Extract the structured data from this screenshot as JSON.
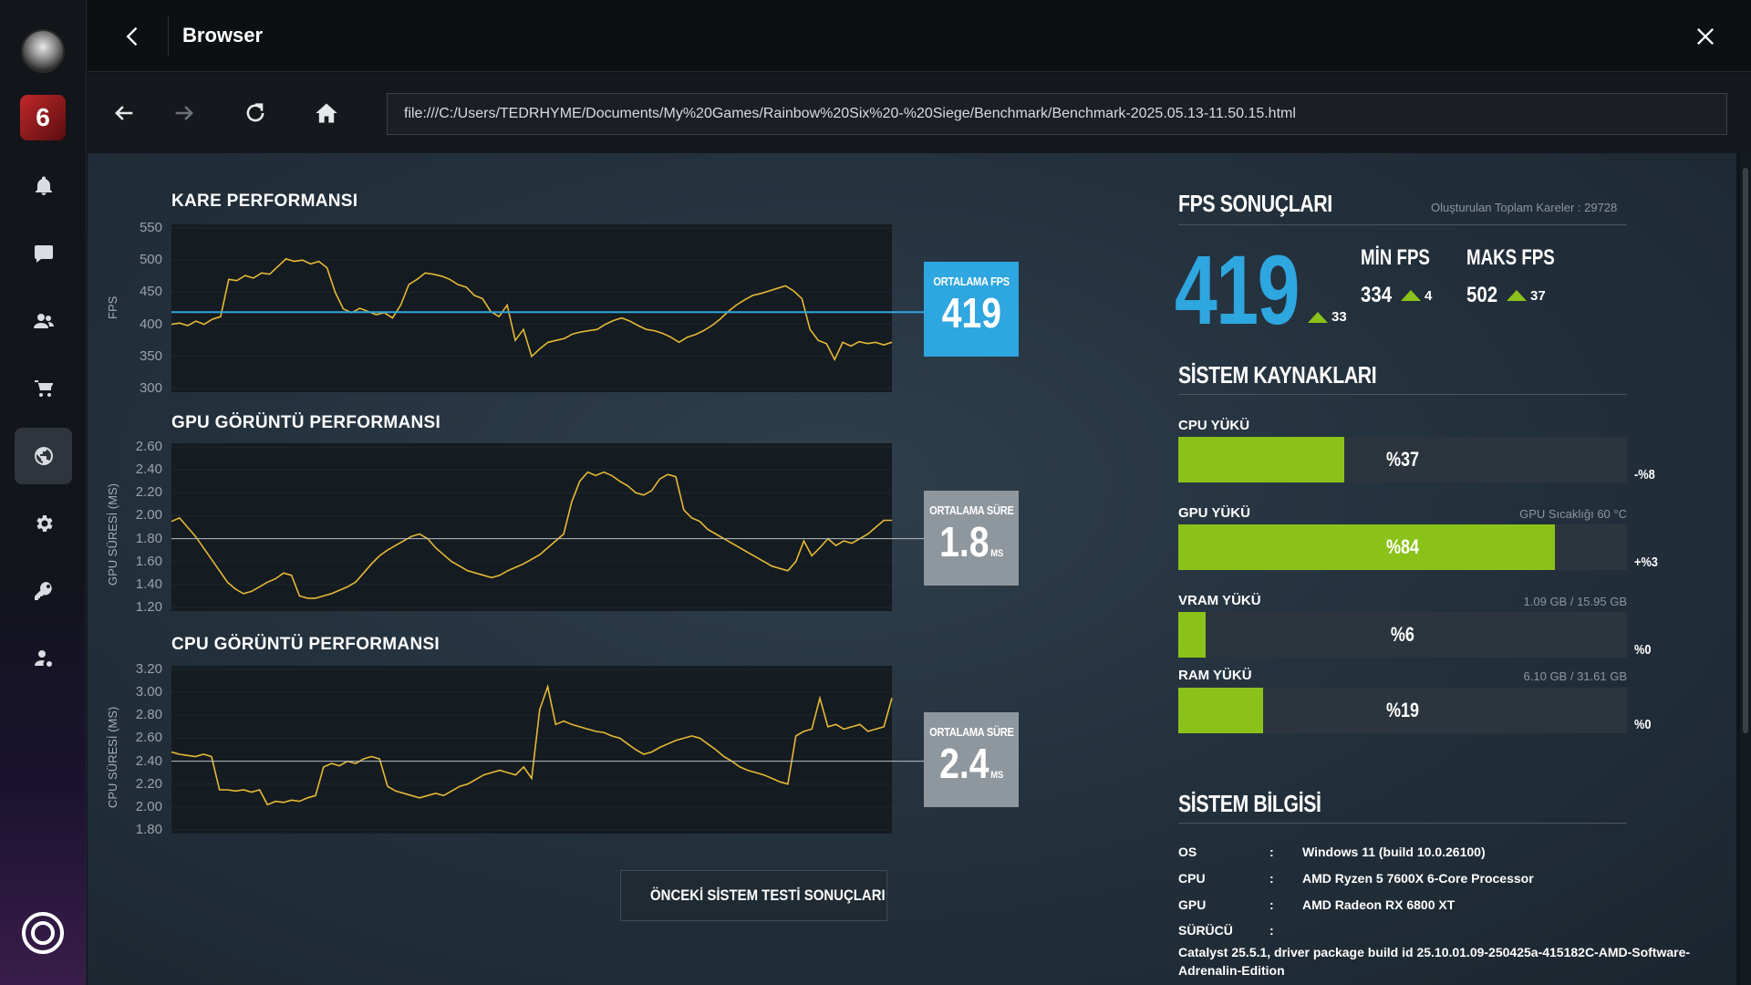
{
  "window": {
    "title": "Browser"
  },
  "nav": {
    "url": "file:///C:/Users/TEDRHYME/Documents/My%20Games/Rainbow%20Six%20-%20Siege/Benchmark/Benchmark-2025.05.13-11.50.15.html"
  },
  "sidebar": {
    "items": [
      {
        "icon": "bell-icon"
      },
      {
        "icon": "chat-icon"
      },
      {
        "icon": "friends-icon"
      },
      {
        "icon": "cart-icon"
      },
      {
        "icon": "globe-icon"
      },
      {
        "icon": "gear-icon"
      },
      {
        "icon": "key-icon"
      },
      {
        "icon": "user-settings-icon"
      }
    ]
  },
  "charts": {
    "frame": {
      "title": "KARE PERFORMANSI",
      "ylabel": "FPS",
      "ticks": [
        "550",
        "500",
        "450",
        "400",
        "350",
        "300"
      ],
      "avg_label": "ORTALAMA FPS",
      "avg_value": "419",
      "avg_unit": ""
    },
    "gpu": {
      "title": "GPU GÖRÜNTÜ PERFORMANSI",
      "ylabel": "GPU SÜRESİ (MS)",
      "ticks": [
        "2.60",
        "2.40",
        "2.20",
        "2.00",
        "1.80",
        "1.60",
        "1.40",
        "1.20"
      ],
      "avg_label": "ORTALAMA SÜRE",
      "avg_value": "1.8",
      "avg_unit": "MS"
    },
    "cpu": {
      "title": "CPU GÖRÜNTÜ PERFORMANSI",
      "ylabel": "CPU SÜRESİ (MS)",
      "ticks": [
        "3.20",
        "3.00",
        "2.80",
        "2.60",
        "2.40",
        "2.20",
        "2.00",
        "1.80"
      ],
      "avg_label": "ORTALAMA SÜRE",
      "avg_value": "2.4",
      "avg_unit": "MS"
    }
  },
  "chart_data": [
    {
      "type": "line",
      "title": "KARE PERFORMANSI",
      "xlabel": "",
      "ylabel": "FPS",
      "ylim": [
        300,
        550
      ],
      "average": 419,
      "series": [
        {
          "values": [
            400,
            402,
            398,
            405,
            400,
            408,
            412,
            470,
            468,
            476,
            472,
            480,
            478,
            490,
            502,
            498,
            500,
            494,
            498,
            488,
            450,
            424,
            418,
            425,
            420,
            415,
            418,
            410,
            430,
            462,
            470,
            480,
            478,
            475,
            470,
            462,
            458,
            445,
            440,
            420,
            412,
            430,
            375,
            392,
            350,
            362,
            372,
            375,
            378,
            385,
            388,
            390,
            392,
            400,
            406,
            410,
            405,
            398,
            392,
            390,
            386,
            380,
            372,
            380,
            384,
            390,
            398,
            408,
            420,
            430,
            438,
            445,
            448,
            452,
            456,
            460,
            452,
            440,
            392,
            375,
            370,
            345,
            372,
            366,
            373,
            370,
            372,
            368,
            372
          ]
        }
      ]
    },
    {
      "type": "line",
      "title": "GPU GÖRÜNTÜ PERFORMANSI",
      "xlabel": "",
      "ylabel": "GPU SÜRESİ (MS)",
      "ylim": [
        1.2,
        2.6
      ],
      "average": 1.8,
      "series": [
        {
          "values": [
            1.95,
            1.98,
            1.9,
            1.82,
            1.72,
            1.62,
            1.52,
            1.42,
            1.36,
            1.32,
            1.34,
            1.38,
            1.42,
            1.45,
            1.5,
            1.48,
            1.3,
            1.28,
            1.28,
            1.3,
            1.32,
            1.35,
            1.38,
            1.42,
            1.5,
            1.58,
            1.65,
            1.7,
            1.74,
            1.78,
            1.82,
            1.84,
            1.8,
            1.72,
            1.66,
            1.6,
            1.56,
            1.52,
            1.5,
            1.48,
            1.46,
            1.48,
            1.52,
            1.55,
            1.58,
            1.62,
            1.66,
            1.72,
            1.78,
            1.84,
            2.12,
            2.3,
            2.38,
            2.35,
            2.38,
            2.35,
            2.3,
            2.26,
            2.2,
            2.18,
            2.22,
            2.32,
            2.36,
            2.34,
            2.05,
            1.98,
            1.95,
            1.88,
            1.84,
            1.8,
            1.76,
            1.72,
            1.68,
            1.64,
            1.6,
            1.56,
            1.54,
            1.52,
            1.6,
            1.78,
            1.65,
            1.72,
            1.8,
            1.74,
            1.78,
            1.76,
            1.8,
            1.84,
            1.9,
            1.96,
            1.96
          ]
        }
      ]
    },
    {
      "type": "line",
      "title": "CPU GÖRÜNTÜ PERFORMANSI",
      "xlabel": "",
      "ylabel": "CPU SÜRESİ (MS)",
      "ylim": [
        1.8,
        3.2
      ],
      "average": 2.4,
      "series": [
        {
          "values": [
            2.48,
            2.46,
            2.45,
            2.44,
            2.46,
            2.44,
            2.15,
            2.15,
            2.14,
            2.15,
            2.13,
            2.15,
            2.02,
            2.05,
            2.04,
            2.06,
            2.05,
            2.08,
            2.1,
            2.35,
            2.38,
            2.36,
            2.4,
            2.38,
            2.42,
            2.44,
            2.42,
            2.18,
            2.14,
            2.12,
            2.1,
            2.08,
            2.1,
            2.12,
            2.1,
            2.14,
            2.18,
            2.2,
            2.24,
            2.28,
            2.3,
            2.32,
            2.3,
            2.28,
            2.35,
            2.25,
            2.85,
            3.05,
            2.72,
            2.75,
            2.72,
            2.7,
            2.68,
            2.66,
            2.65,
            2.62,
            2.6,
            2.55,
            2.5,
            2.46,
            2.48,
            2.52,
            2.55,
            2.58,
            2.6,
            2.62,
            2.6,
            2.55,
            2.5,
            2.44,
            2.4,
            2.35,
            2.32,
            2.3,
            2.28,
            2.25,
            2.22,
            2.2,
            2.62,
            2.66,
            2.68,
            2.95,
            2.7,
            2.72,
            2.68,
            2.7,
            2.72,
            2.66,
            2.68,
            2.7,
            2.95
          ]
        }
      ]
    }
  ],
  "fps": {
    "title": "FPS SONUÇLARI",
    "total_frames": "Oluşturulan Toplam Kareler : 29728",
    "avg": "419",
    "avg_delta": "33",
    "min_label": "MİN FPS",
    "min_value": "334",
    "min_delta": "4",
    "max_label": "MAKS FPS",
    "max_value": "502",
    "max_delta": "37",
    "colors": {
      "accent": "#2ea6df",
      "up": "#8bc21a"
    }
  },
  "resources": {
    "title": "SİSTEM KAYNAKLARI",
    "cpu": {
      "label": "CPU YÜKÜ",
      "value": 37,
      "text": "%37",
      "delta": "-%8",
      "extra": ""
    },
    "gpu": {
      "label": "GPU YÜKÜ",
      "value": 84,
      "text": "%84",
      "delta": "+%3",
      "extra": "GPU Sıcaklığı 60 °C"
    },
    "vram": {
      "label": "VRAM YÜKÜ",
      "value": 6,
      "text": "%6",
      "delta": "%0",
      "extra": "1.09 GB / 15.95 GB"
    },
    "ram": {
      "label": "RAM YÜKÜ",
      "value": 19,
      "text": "%19",
      "delta": "%0",
      "extra": "6.10 GB / 31.61 GB"
    }
  },
  "sysinfo": {
    "title": "SİSTEM BİLGİSİ",
    "sep": ":",
    "rows": [
      {
        "key": "OS",
        "value": "Windows 11 (build 10.0.26100)"
      },
      {
        "key": "CPU",
        "value": "AMD Ryzen 5 7600X 6-Core Processor"
      },
      {
        "key": "GPU",
        "value": "AMD Radeon RX 6800 XT"
      },
      {
        "key": "SÜRÜCÜ",
        "value": ""
      }
    ],
    "driver": "Catalyst 25.5.1, driver package build id 25.10.01.09-250425a-415182C-AMD-Software-Adrenalin-Edition"
  },
  "prev_button": "ÖNCEKİ SİSTEM TESTİ SONUÇLARI"
}
